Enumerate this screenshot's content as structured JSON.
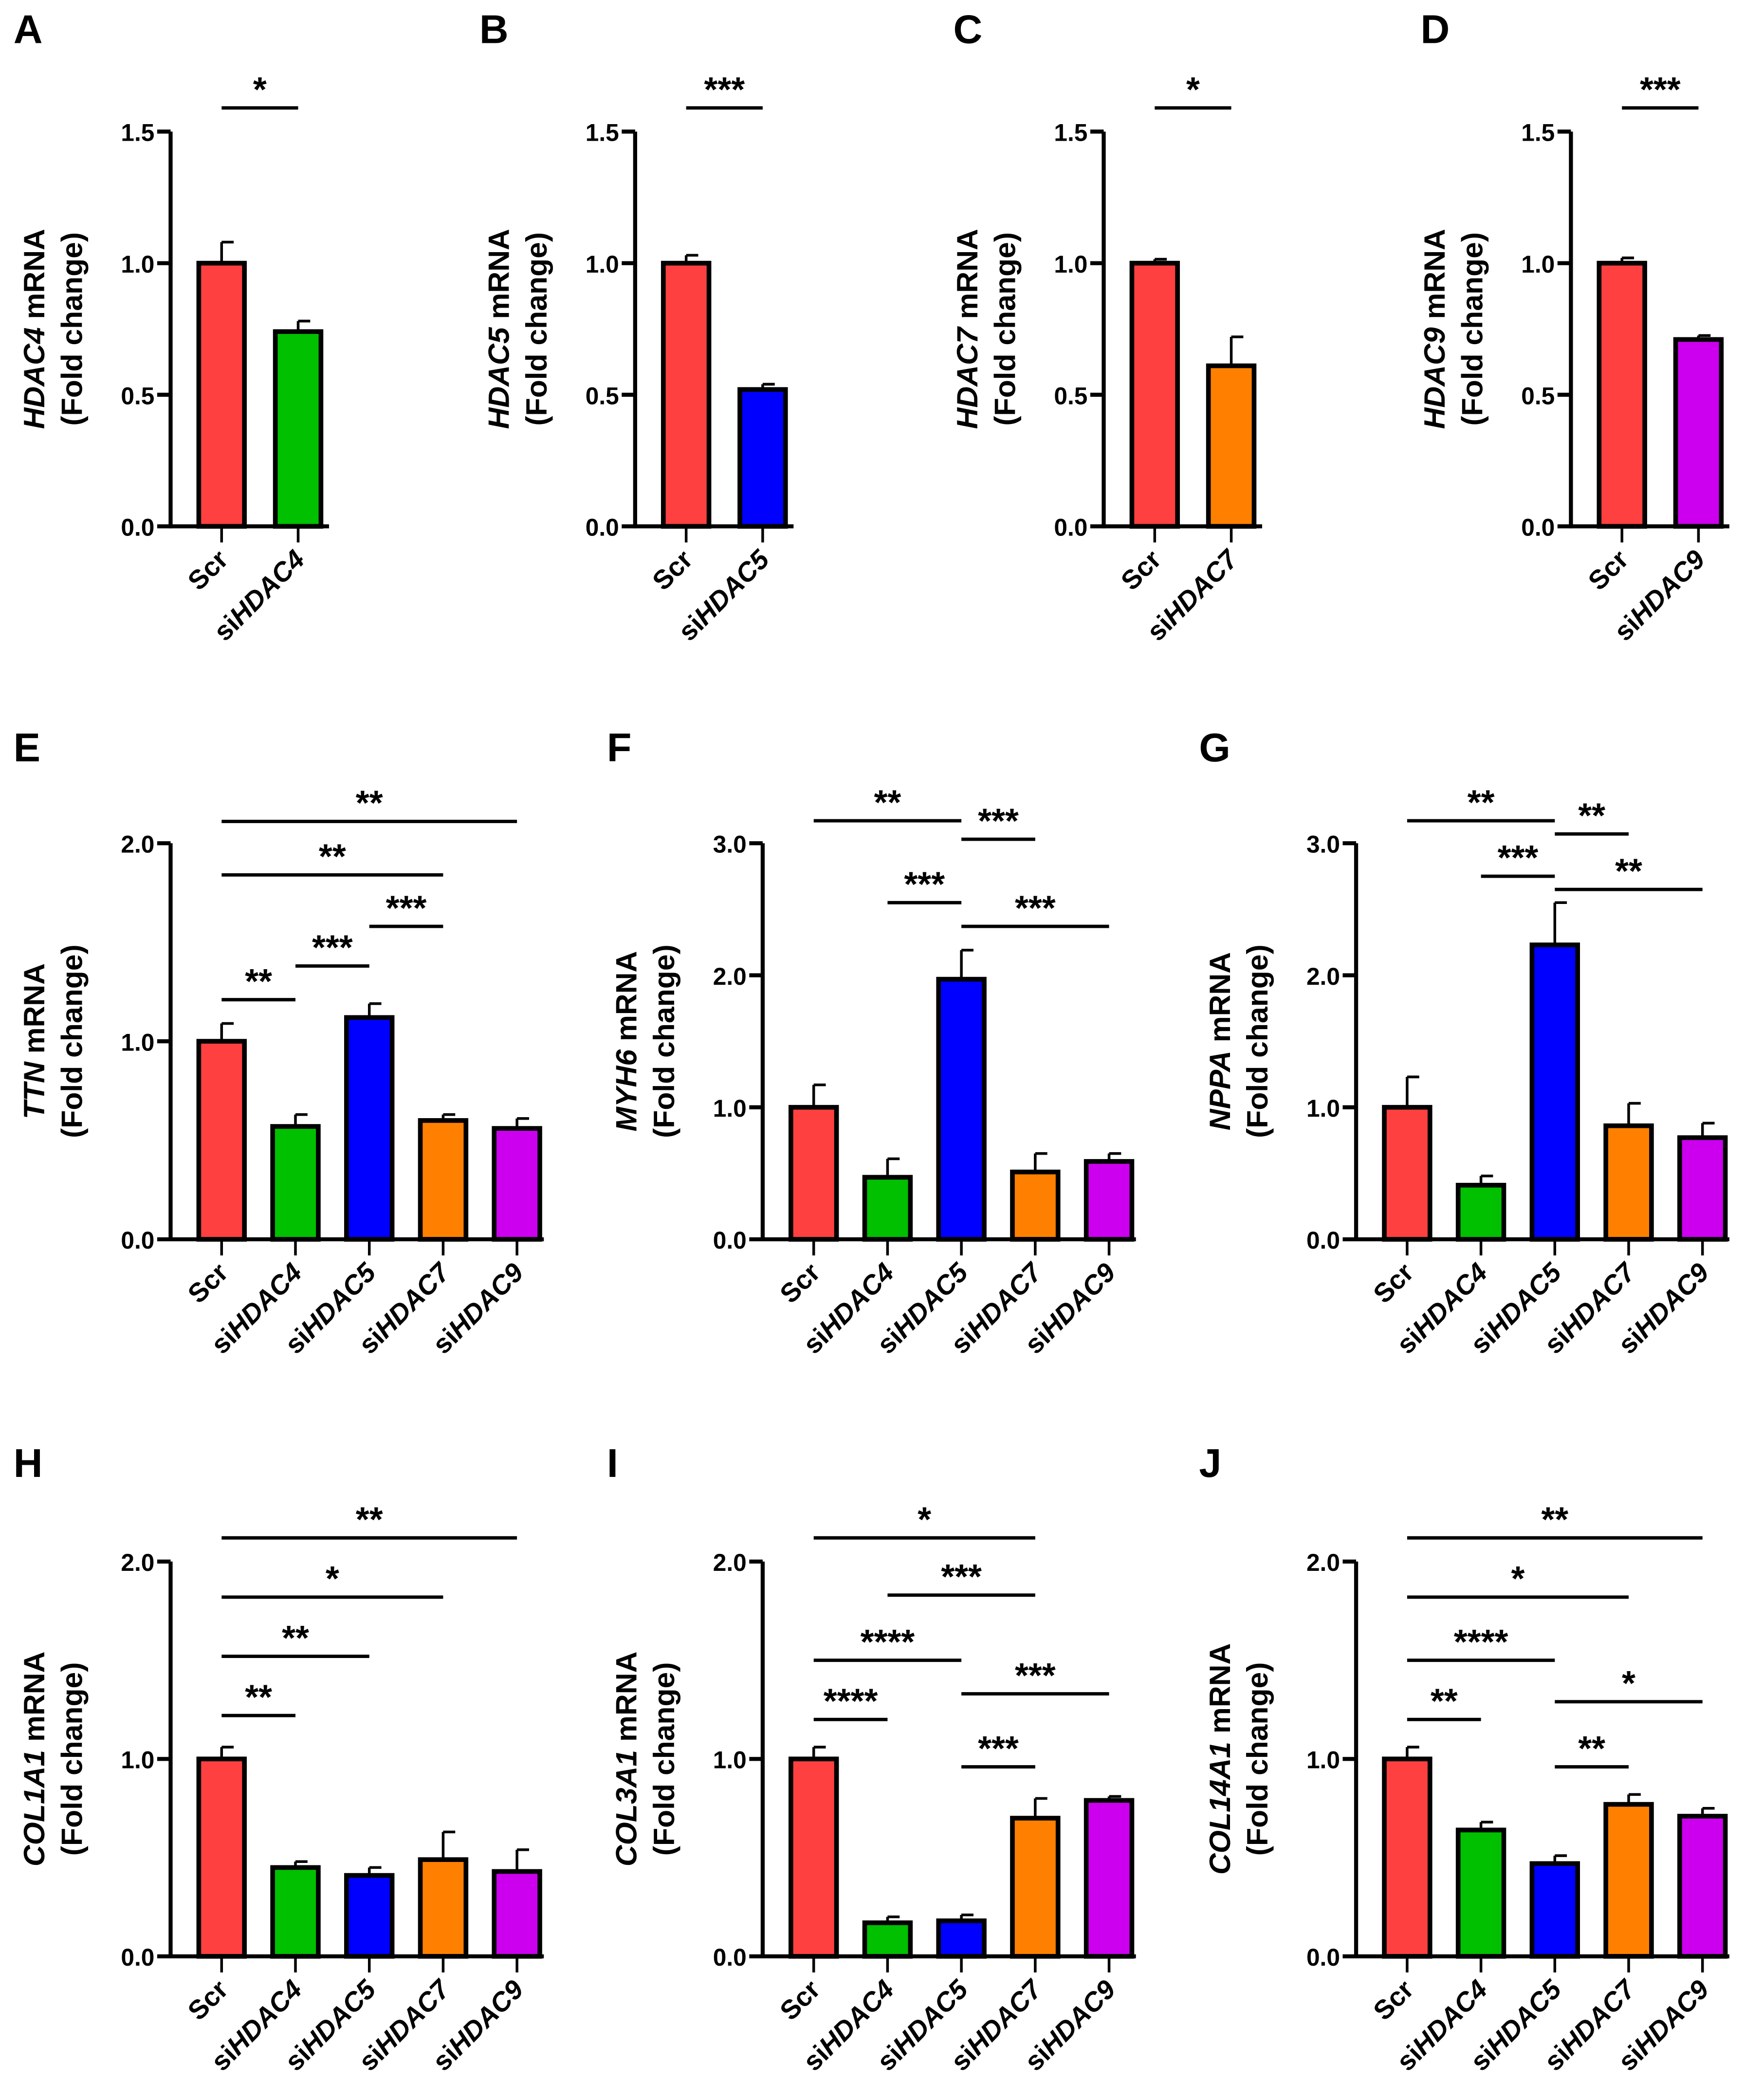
{
  "colors": {
    "Scr": "#FF4040",
    "siHDAC4": "#00C000",
    "siHDAC5": "#0000FF",
    "siHDAC7": "#FF8000",
    "siHDAC9": "#CC00EE"
  },
  "chart_data": [
    {
      "type": "bar",
      "panel": "A",
      "gene": "HDAC4",
      "ylabel_suffix": " mRNA",
      "ylabel2": "(Fold change)",
      "ylim": [
        0,
        1.5
      ],
      "yticks": [
        "0.0",
        "0.5",
        "1.0",
        "1.5"
      ],
      "categories": [
        "Scr",
        "siHDAC4"
      ],
      "values": [
        1.0,
        0.74
      ],
      "errors": [
        0.08,
        0.04
      ],
      "sig": [
        {
          "from": 0,
          "to": 1,
          "level": 1.59,
          "label": "*"
        }
      ]
    },
    {
      "type": "bar",
      "panel": "B",
      "gene": "HDAC5",
      "ylabel_suffix": " mRNA",
      "ylabel2": "(Fold change)",
      "ylim": [
        0,
        1.5
      ],
      "yticks": [
        "0.0",
        "0.5",
        "1.0",
        "1.5"
      ],
      "categories": [
        "Scr",
        "siHDAC5"
      ],
      "values": [
        1.0,
        0.52
      ],
      "errors": [
        0.03,
        0.02
      ],
      "sig": [
        {
          "from": 0,
          "to": 1,
          "level": 1.59,
          "label": "***"
        }
      ]
    },
    {
      "type": "bar",
      "panel": "C",
      "gene": "HDAC7",
      "ylabel_suffix": " mRNA",
      "ylabel2": "(Fold change)",
      "ylim": [
        0,
        1.5
      ],
      "yticks": [
        "0.0",
        "0.5",
        "1.0",
        "1.5"
      ],
      "categories": [
        "Scr",
        "siHDAC7"
      ],
      "values": [
        1.0,
        0.61
      ],
      "errors": [
        0.015,
        0.11
      ],
      "sig": [
        {
          "from": 0,
          "to": 1,
          "level": 1.59,
          "label": "*"
        }
      ]
    },
    {
      "type": "bar",
      "panel": "D",
      "gene": "HDAC9",
      "ylabel_suffix": " mRNA",
      "ylabel2": "(Fold change)",
      "ylim": [
        0,
        1.5
      ],
      "yticks": [
        "0.0",
        "0.5",
        "1.0",
        "1.5"
      ],
      "categories": [
        "Scr",
        "siHDAC9"
      ],
      "values": [
        1.0,
        0.71
      ],
      "errors": [
        0.02,
        0.015
      ],
      "sig": [
        {
          "from": 0,
          "to": 1,
          "level": 1.59,
          "label": "***"
        }
      ]
    },
    {
      "type": "bar",
      "panel": "E",
      "gene": "TTN",
      "ylabel_suffix": " mRNA",
      "ylabel2": "(Fold change)",
      "ylim": [
        0,
        2.0
      ],
      "yticks": [
        "0.0",
        "1.0",
        "2.0"
      ],
      "categories": [
        "Scr",
        "siHDAC4",
        "siHDAC5",
        "siHDAC7",
        "siHDAC9"
      ],
      "values": [
        1.0,
        0.57,
        1.12,
        0.6,
        0.56
      ],
      "errors": [
        0.09,
        0.06,
        0.07,
        0.03,
        0.05
      ],
      "sig": [
        {
          "from": 0,
          "to": 4,
          "level": 2.11,
          "label": "**"
        },
        {
          "from": 0,
          "to": 3,
          "level": 1.84,
          "label": "**"
        },
        {
          "from": 2,
          "to": 3,
          "level": 1.58,
          "label": "***"
        },
        {
          "from": 1,
          "to": 2,
          "level": 1.38,
          "label": "***"
        },
        {
          "from": 0,
          "to": 1,
          "level": 1.21,
          "label": "**"
        }
      ]
    },
    {
      "type": "bar",
      "panel": "F",
      "gene": "MYH6",
      "ylabel_suffix": " mRNA",
      "ylabel2": "(Fold change)",
      "ylim": [
        0,
        3.0
      ],
      "yticks": [
        "0.0",
        "1.0",
        "2.0",
        "3.0"
      ],
      "categories": [
        "Scr",
        "siHDAC4",
        "siHDAC5",
        "siHDAC7",
        "siHDAC9"
      ],
      "values": [
        1.0,
        0.47,
        1.97,
        0.51,
        0.59
      ],
      "errors": [
        0.17,
        0.14,
        0.22,
        0.14,
        0.06
      ],
      "sig": [
        {
          "from": 0,
          "to": 2,
          "level": 3.17,
          "label": "**"
        },
        {
          "from": 2,
          "to": 3,
          "level": 3.03,
          "label": "***"
        },
        {
          "from": 1,
          "to": 2,
          "level": 2.55,
          "label": "***"
        },
        {
          "from": 2,
          "to": 4,
          "level": 2.37,
          "label": "***"
        }
      ]
    },
    {
      "type": "bar",
      "panel": "G",
      "gene": "NPPA",
      "ylabel_suffix": " mRNA",
      "ylabel2": "(Fold change)",
      "ylim": [
        0,
        3.0
      ],
      "yticks": [
        "0.0",
        "1.0",
        "2.0",
        "3.0"
      ],
      "categories": [
        "Scr",
        "siHDAC4",
        "siHDAC5",
        "siHDAC7",
        "siHDAC9"
      ],
      "values": [
        1.0,
        0.41,
        2.23,
        0.86,
        0.77
      ],
      "errors": [
        0.23,
        0.07,
        0.32,
        0.17,
        0.11
      ],
      "sig": [
        {
          "from": 0,
          "to": 2,
          "level": 3.17,
          "label": "**"
        },
        {
          "from": 2,
          "to": 3,
          "level": 3.07,
          "label": "**"
        },
        {
          "from": 1,
          "to": 2,
          "level": 2.75,
          "label": "***"
        },
        {
          "from": 2,
          "to": 4,
          "level": 2.65,
          "label": "**"
        }
      ]
    },
    {
      "type": "bar",
      "panel": "H",
      "gene": "COL1A1",
      "ylabel_suffix": " mRNA",
      "ylabel2": "(Fold change)",
      "ylim": [
        0,
        2.0
      ],
      "yticks": [
        "0.0",
        "1.0",
        "2.0"
      ],
      "categories": [
        "Scr",
        "siHDAC4",
        "siHDAC5",
        "siHDAC7",
        "siHDAC9"
      ],
      "values": [
        1.0,
        0.45,
        0.41,
        0.49,
        0.43
      ],
      "errors": [
        0.06,
        0.03,
        0.04,
        0.14,
        0.11
      ],
      "sig": [
        {
          "from": 0,
          "to": 4,
          "level": 2.12,
          "label": "**"
        },
        {
          "from": 0,
          "to": 3,
          "level": 1.82,
          "label": "*"
        },
        {
          "from": 0,
          "to": 2,
          "level": 1.52,
          "label": "**"
        },
        {
          "from": 0,
          "to": 1,
          "level": 1.22,
          "label": "**"
        }
      ]
    },
    {
      "type": "bar",
      "panel": "I",
      "gene": "COL3A1",
      "ylabel_suffix": " mRNA",
      "ylabel2": "(Fold change)",
      "ylim": [
        0,
        2.0
      ],
      "yticks": [
        "0.0",
        "1.0",
        "2.0"
      ],
      "categories": [
        "Scr",
        "siHDAC4",
        "siHDAC5",
        "siHDAC7",
        "siHDAC9"
      ],
      "values": [
        1.0,
        0.17,
        0.18,
        0.7,
        0.79
      ],
      "errors": [
        0.06,
        0.03,
        0.03,
        0.1,
        0.02
      ],
      "sig": [
        {
          "from": 0,
          "to": 3,
          "level": 2.12,
          "label": "*"
        },
        {
          "from": 1,
          "to": 3,
          "level": 1.83,
          "label": "***"
        },
        {
          "from": 0,
          "to": 2,
          "level": 1.5,
          "label": "****"
        },
        {
          "from": 2,
          "to": 4,
          "level": 1.33,
          "label": "***"
        },
        {
          "from": 0,
          "to": 1,
          "level": 1.2,
          "label": "****"
        },
        {
          "from": 2,
          "to": 3,
          "level": 0.96,
          "label": "***"
        }
      ]
    },
    {
      "type": "bar",
      "panel": "J",
      "gene": "COL14A1",
      "ylabel_suffix": " mRNA",
      "ylabel2": "(Fold change)",
      "ylim": [
        0,
        2.0
      ],
      "yticks": [
        "0.0",
        "1.0",
        "2.0"
      ],
      "categories": [
        "Scr",
        "siHDAC4",
        "siHDAC5",
        "siHDAC7",
        "siHDAC9"
      ],
      "values": [
        1.0,
        0.64,
        0.47,
        0.77,
        0.71
      ],
      "errors": [
        0.06,
        0.04,
        0.04,
        0.05,
        0.04
      ],
      "sig": [
        {
          "from": 0,
          "to": 4,
          "level": 2.12,
          "label": "**"
        },
        {
          "from": 0,
          "to": 3,
          "level": 1.82,
          "label": "*"
        },
        {
          "from": 0,
          "to": 2,
          "level": 1.5,
          "label": "****"
        },
        {
          "from": 2,
          "to": 4,
          "level": 1.29,
          "label": "*"
        },
        {
          "from": 0,
          "to": 1,
          "level": 1.2,
          "label": "**"
        },
        {
          "from": 2,
          "to": 3,
          "level": 0.96,
          "label": "**"
        }
      ]
    }
  ]
}
